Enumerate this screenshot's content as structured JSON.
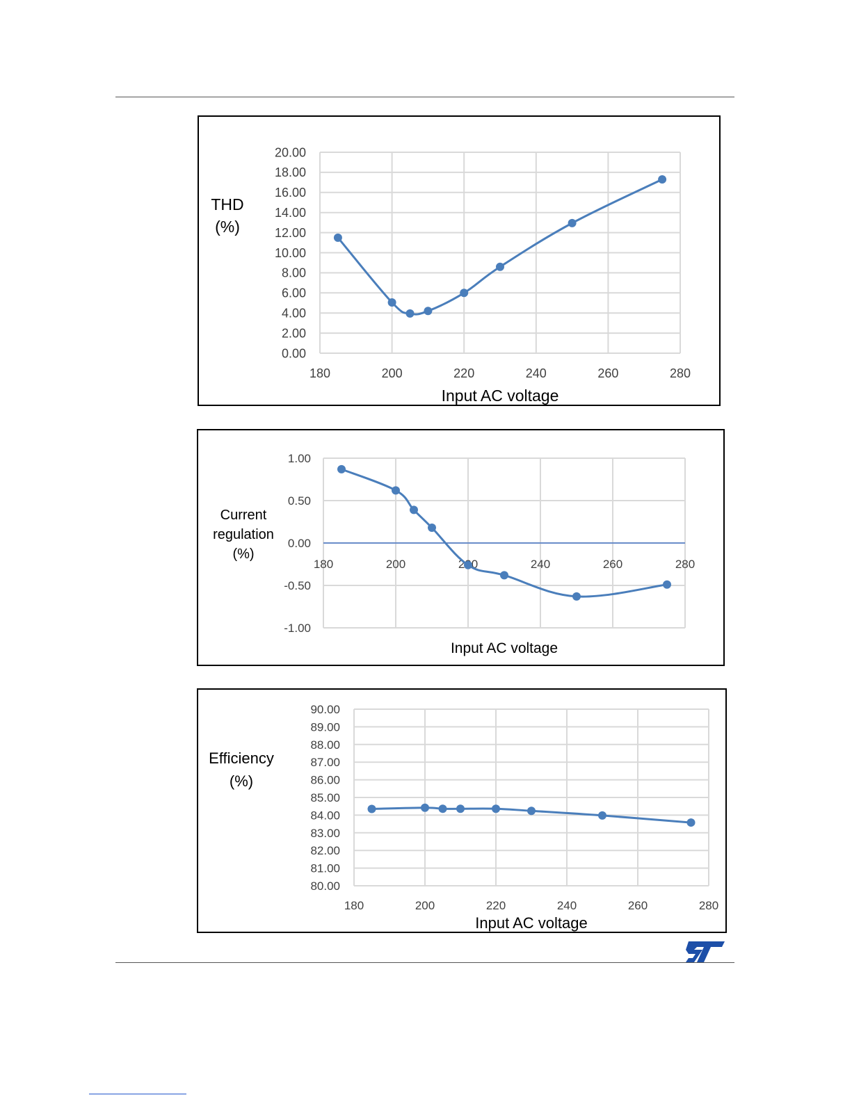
{
  "page": {
    "logo_name": "st-logo"
  },
  "chart_data": [
    {
      "type": "line",
      "ylabel": "THD\n(%)",
      "xlabel": "Input AC voltage",
      "x": [
        185,
        200,
        205,
        210,
        220,
        230,
        250,
        275
      ],
      "series": [
        {
          "values": [
            11.5,
            5.05,
            3.95,
            4.2,
            6.0,
            8.6,
            12.95,
            17.3
          ]
        }
      ],
      "xlim": [
        180,
        280
      ],
      "ylim": [
        0,
        20
      ],
      "xticks": [
        180,
        200,
        220,
        240,
        260,
        280
      ],
      "yticks": [
        0,
        2,
        4,
        6,
        8,
        10,
        12,
        14,
        16,
        18,
        20
      ],
      "ytick_labels": [
        "0.00",
        "2.00",
        "4.00",
        "6.00",
        "8.00",
        "10.00",
        "12.00",
        "14.00",
        "16.00",
        "18.00",
        "20.00"
      ],
      "grid": true,
      "color": "#4a7ebb"
    },
    {
      "type": "line",
      "ylabel": "Current\nregulation\n(%)",
      "xlabel": "Input AC voltage",
      "x": [
        185,
        200,
        205,
        210,
        220,
        230,
        250,
        275
      ],
      "series": [
        {
          "values": [
            0.87,
            0.62,
            0.39,
            0.18,
            -0.26,
            -0.38,
            -0.63,
            -0.49
          ]
        }
      ],
      "xlim": [
        180,
        280
      ],
      "ylim": [
        -1,
        1
      ],
      "xticks": [
        180,
        200,
        220,
        240,
        260,
        280
      ],
      "yticks": [
        -1,
        -0.5,
        0,
        0.5,
        1
      ],
      "ytick_labels": [
        "-1.00",
        "-0.50",
        "0.00",
        "0.50",
        "1.00"
      ],
      "x_axis_at_zero": true,
      "grid": true,
      "color": "#4a7ebb"
    },
    {
      "type": "line",
      "ylabel": "Efficiency\n(%)",
      "xlabel": "Input AC voltage",
      "x": [
        185,
        200,
        205,
        210,
        220,
        230,
        250,
        275
      ],
      "series": [
        {
          "values": [
            84.35,
            84.42,
            84.36,
            84.36,
            84.36,
            84.24,
            83.98,
            83.58
          ]
        }
      ],
      "xlim": [
        180,
        280
      ],
      "ylim": [
        80,
        90
      ],
      "xticks": [
        180,
        200,
        220,
        240,
        260,
        280
      ],
      "yticks": [
        80,
        81,
        82,
        83,
        84,
        85,
        86,
        87,
        88,
        89,
        90
      ],
      "ytick_labels": [
        "80.00",
        "81.00",
        "82.00",
        "83.00",
        "84.00",
        "85.00",
        "86.00",
        "87.00",
        "88.00",
        "89.00",
        "90.00"
      ],
      "grid": true,
      "color": "#4a7ebb"
    }
  ]
}
